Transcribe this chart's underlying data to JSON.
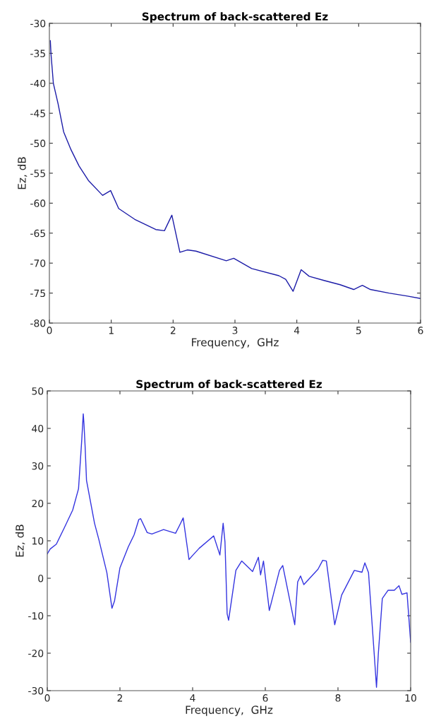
{
  "chart_data": [
    {
      "type": "line",
      "title": "Spectrum of back-scattered Ez",
      "xlabel": "Frequency,  GHz",
      "ylabel": "Ez, dB",
      "xlim": [
        0,
        6
      ],
      "xticks": [
        0,
        1,
        2,
        3,
        4,
        5,
        6
      ],
      "ylim": [
        -80,
        -30
      ],
      "yticks": [
        -80,
        -75,
        -70,
        -65,
        -60,
        -55,
        -50,
        -45,
        -40,
        -35,
        -30
      ],
      "grid": false,
      "series": [
        {
          "color": "#1c1ca8",
          "x": [
            0.015,
            0.026,
            0.064,
            0.14,
            0.23,
            0.35,
            0.48,
            0.63,
            0.86,
            0.99,
            1.12,
            1.38,
            1.72,
            1.86,
            1.98,
            2.11,
            2.23,
            2.37,
            2.86,
            2.98,
            3.27,
            3.71,
            3.82,
            3.94,
            4.07,
            4.2,
            4.44,
            4.7,
            4.92,
            5.06,
            5.19,
            5.49,
            5.79,
            6.0
          ],
          "values": [
            -32.9,
            -35.1,
            -40,
            -43.4,
            -48.1,
            -51.1,
            -53.8,
            -56.2,
            -58.7,
            -57.9,
            -60.9,
            -62.7,
            -64.4,
            -64.6,
            -62.0,
            -68.2,
            -67.8,
            -68.0,
            -69.6,
            -69.2,
            -70.9,
            -72.1,
            -72.7,
            -74.7,
            -71.1,
            -72.2,
            -72.9,
            -73.6,
            -74.4,
            -73.7,
            -74.4,
            -75.0,
            -75.5,
            -75.9
          ]
        }
      ]
    },
    {
      "type": "line",
      "title": "Spectrum of back-scattered Ez",
      "xlabel": "Frequency,  GHz",
      "ylabel": "Ez, dB",
      "xlim": [
        0,
        10
      ],
      "xticks": [
        0,
        2,
        4,
        6,
        8,
        10
      ],
      "ylim": [
        -30,
        50
      ],
      "yticks": [
        -30,
        -20,
        -10,
        0,
        10,
        20,
        30,
        40,
        50
      ],
      "grid": false,
      "series": [
        {
          "color": "#3434e0",
          "x": [
            0,
            0.08,
            0.25,
            0.47,
            0.7,
            0.86,
            0.95,
            0.99,
            1.01,
            1.04,
            1.08,
            1.3,
            1.42,
            1.64,
            1.78,
            1.85,
            2.0,
            2.23,
            2.39,
            2.52,
            2.57,
            2.75,
            2.88,
            3.2,
            3.53,
            3.64,
            3.74,
            3.9,
            4.01,
            4.18,
            4.58,
            4.75,
            4.84,
            4.89,
            4.95,
            4.99,
            5.19,
            5.35,
            5.65,
            5.81,
            5.87,
            5.95,
            6.11,
            6.39,
            6.48,
            6.81,
            6.89,
            6.97,
            7.06,
            7.45,
            7.58,
            7.68,
            7.91,
            8.1,
            8.45,
            8.66,
            8.74,
            8.84,
            9.0,
            9.06,
            9.11,
            9.22,
            9.38,
            9.55,
            9.68,
            9.76,
            9.9,
            10.0
          ],
          "values": [
            6.5,
            7.8,
            9.1,
            13.5,
            18.2,
            23.9,
            37.1,
            43.9,
            41.2,
            35.5,
            26.1,
            14.7,
            10.3,
            1.5,
            -8.0,
            -6.1,
            2.8,
            8.4,
            11.6,
            15.7,
            15.9,
            12.2,
            11.8,
            13.0,
            12.0,
            14.1,
            16.1,
            5.0,
            6.2,
            8.0,
            11.3,
            6.2,
            14.7,
            9.7,
            -9.5,
            -11.2,
            2.1,
            4.6,
            1.8,
            5.6,
            0.9,
            4.6,
            -8.6,
            2.1,
            3.4,
            -12.4,
            -1.0,
            0.6,
            -1.7,
            2.4,
            4.8,
            4.6,
            -12.4,
            -4.5,
            2.1,
            1.6,
            4.1,
            1.5,
            -20.6,
            -29.1,
            -20.2,
            -5.4,
            -3.2,
            -3.2,
            -2.0,
            -4.3,
            -3.9,
            -17.1
          ]
        }
      ]
    }
  ]
}
